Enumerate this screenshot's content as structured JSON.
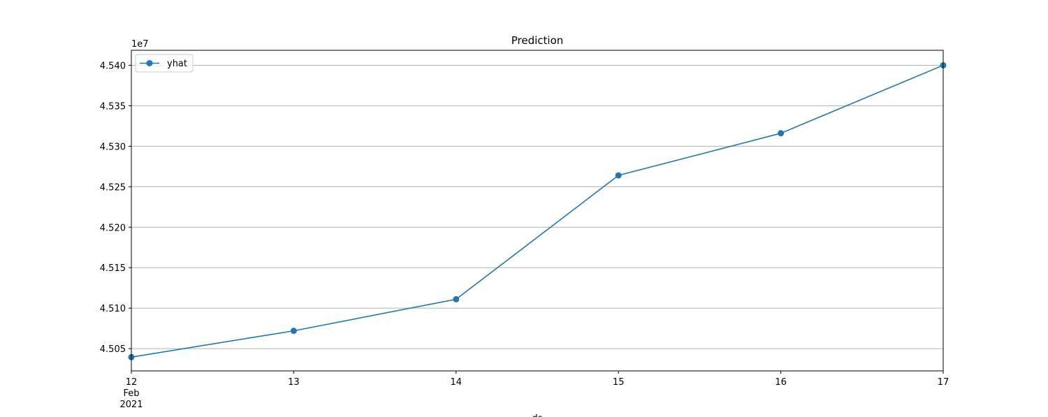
{
  "chart_data": {
    "type": "line",
    "title": "Prediction",
    "xlabel": "ds",
    "ylabel": "",
    "y_offset_label": "1e7",
    "y_scale": 10000000,
    "x": [
      "2021-02-12",
      "2021-02-13",
      "2021-02-14",
      "2021-02-15",
      "2021-02-16",
      "2021-02-17"
    ],
    "x_tick_labels": [
      [
        "12",
        "Feb",
        "2021"
      ],
      [
        "13"
      ],
      [
        "14"
      ],
      [
        "15"
      ],
      [
        "16"
      ],
      [
        "17"
      ]
    ],
    "series": [
      {
        "name": "yhat",
        "color": "#1f77b4",
        "marker": "circle",
        "values": [
          45039500,
          45072000,
          45111000,
          45264000,
          45316000,
          45400000
        ]
      }
    ],
    "ylim": [
      45022500,
      45418500
    ],
    "y_ticks": [
      45050000,
      45100000,
      45150000,
      45200000,
      45250000,
      45300000,
      45350000,
      45400000
    ],
    "y_tick_labels": [
      "4.505",
      "4.510",
      "4.515",
      "4.520",
      "4.525",
      "4.530",
      "4.535",
      "4.540"
    ],
    "grid": "y",
    "grid_color": "#b0b0b0",
    "legend_position": "upper-left"
  }
}
